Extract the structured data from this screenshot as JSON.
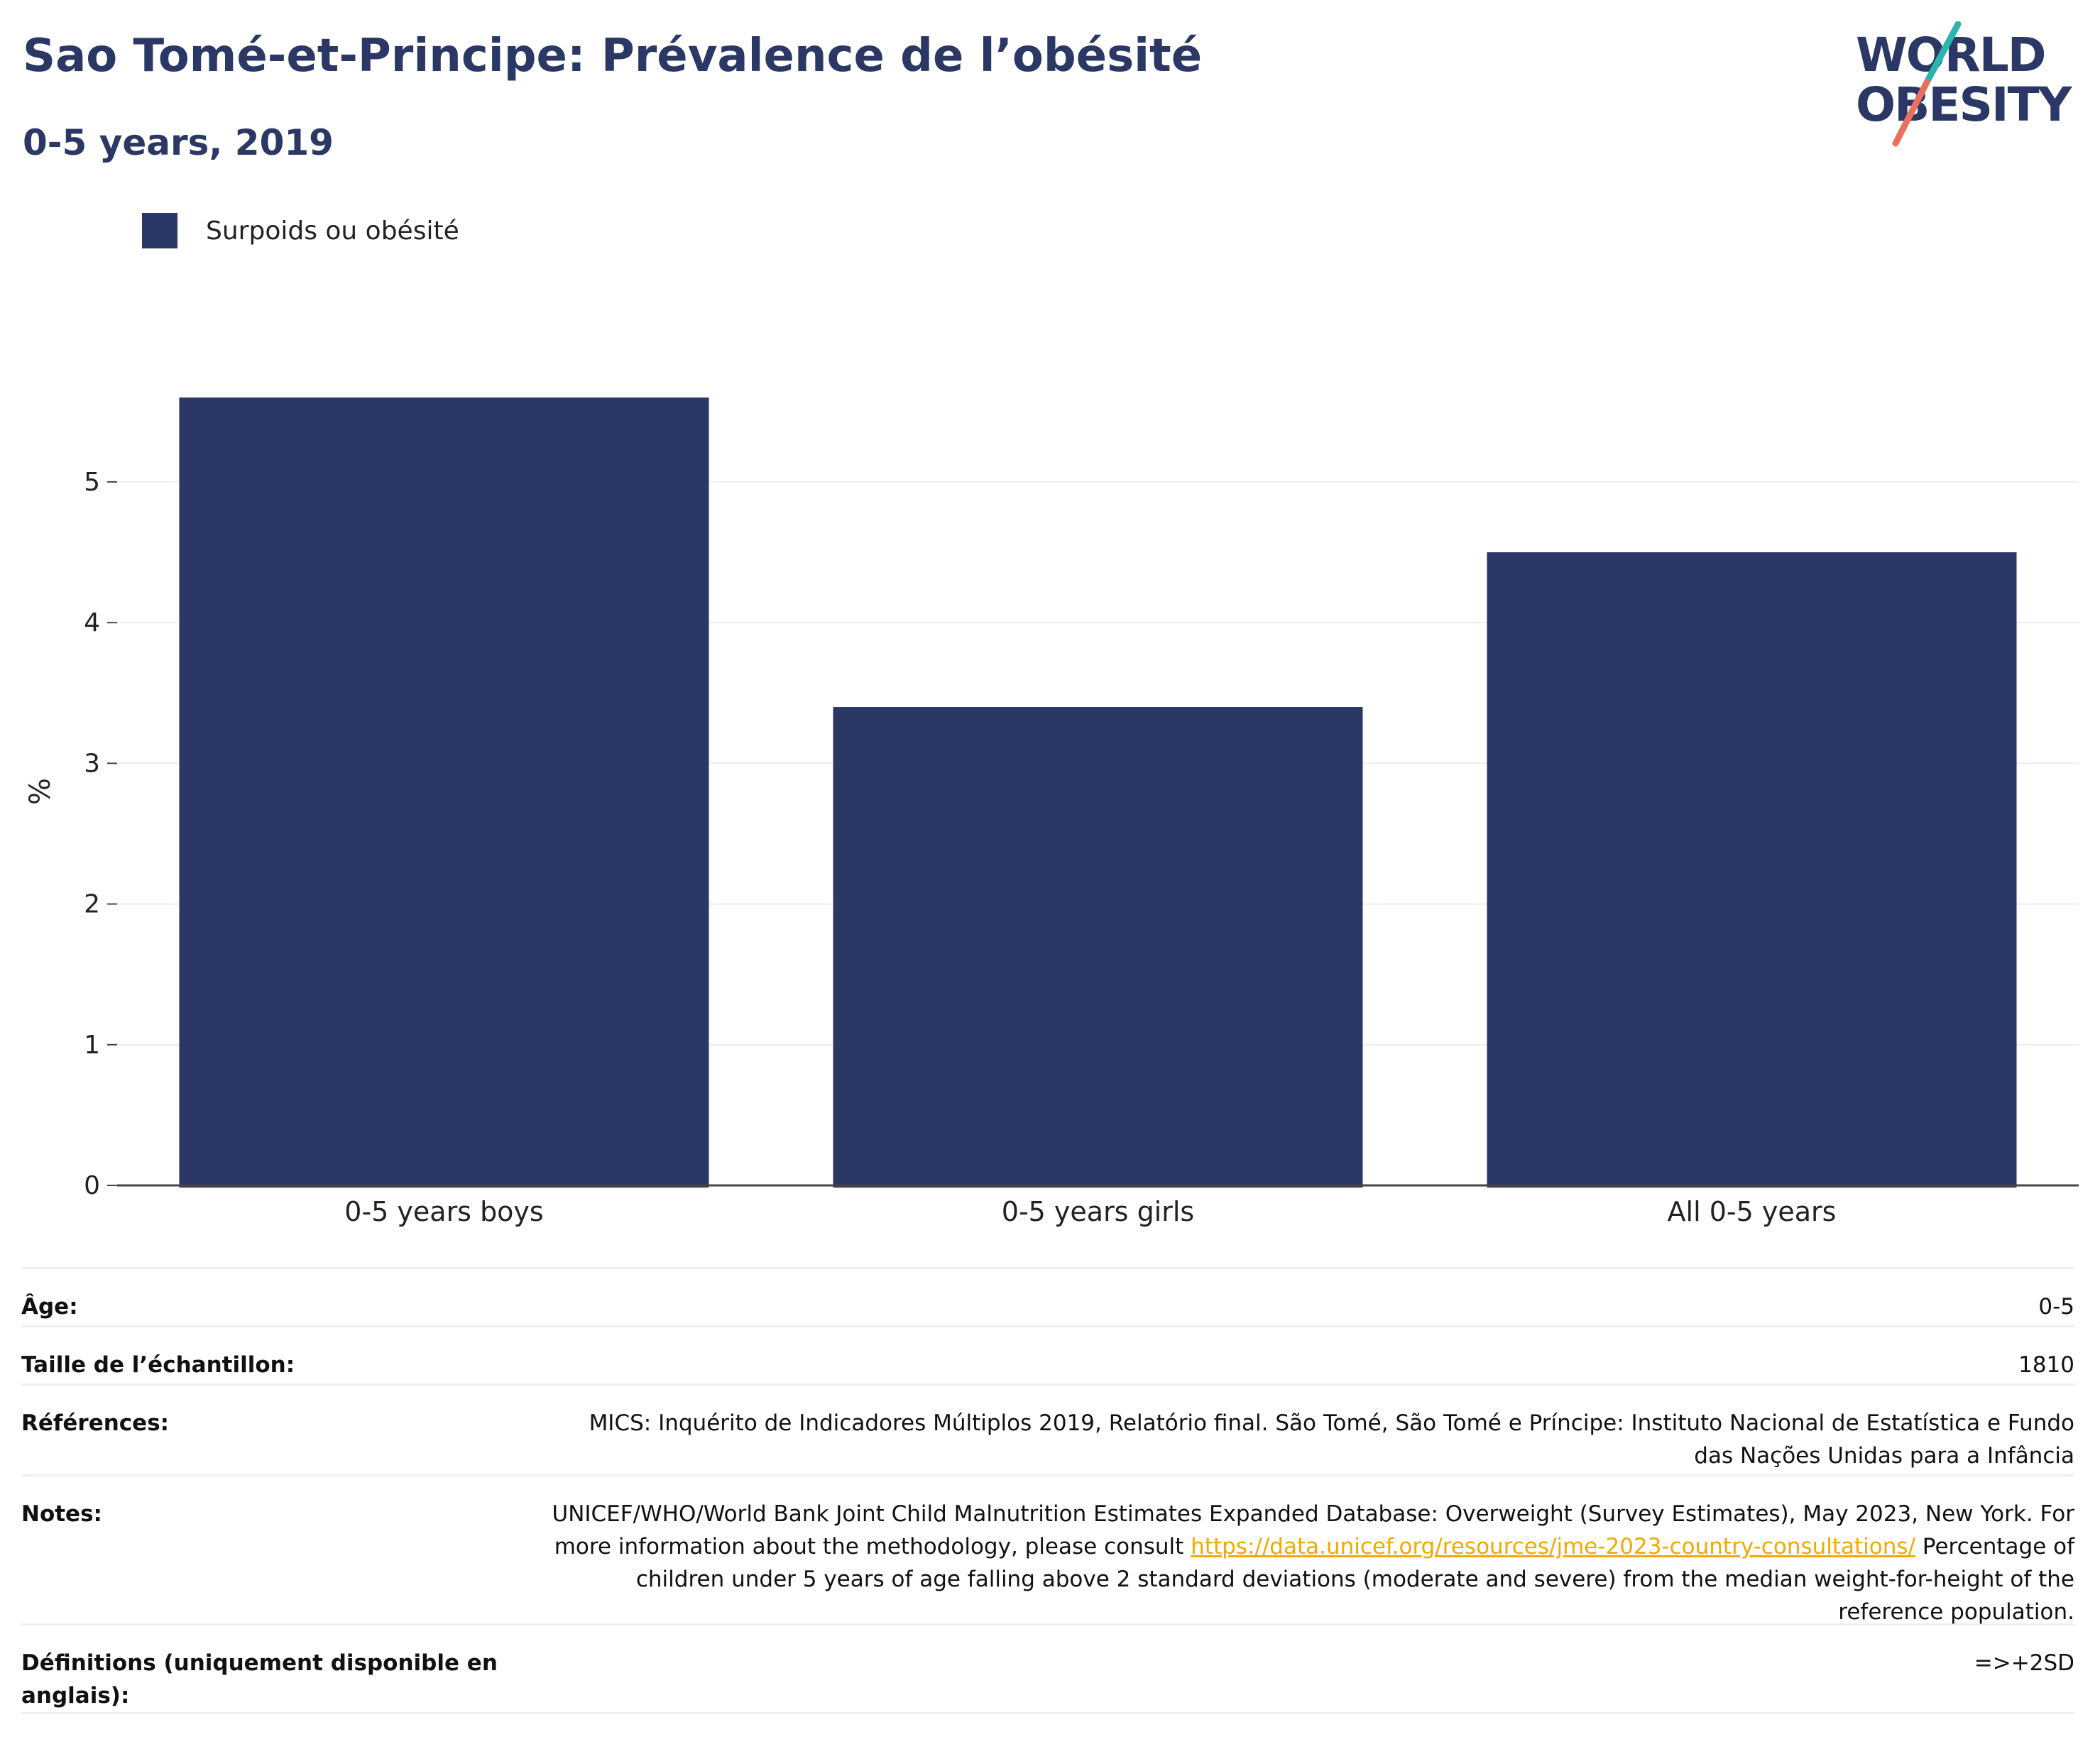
{
  "header": {
    "title": "Sao Tomé-et-Principe: Prévalence de l’obésité",
    "subtitle": "0-5 years, 2019"
  },
  "logo": {
    "line1": "WORLD",
    "line2": "OBESITY",
    "colors": {
      "text": "#2b3764",
      "slash_teal": "#2bb5b0",
      "slash_coral": "#e8705f"
    }
  },
  "colors": {
    "bar": "#2b3764",
    "grid": "#eeeeee",
    "axis": "#444444",
    "link": "#f2a900"
  },
  "chart_data": {
    "type": "bar",
    "categories": [
      "0-5 years boys",
      "0-5 years girls",
      "All 0-5 years"
    ],
    "series": [
      {
        "name": "Surpoids ou obésité",
        "values": [
          5.6,
          3.4,
          4.5
        ]
      }
    ],
    "ylabel": "%",
    "ylim": [
      0,
      5.6
    ],
    "yticks": [
      0,
      1,
      2,
      3,
      4,
      5
    ],
    "grid": true,
    "legend_position": "top-left"
  },
  "info": {
    "age": {
      "label": "Âge:",
      "value": "0-5"
    },
    "sample": {
      "label": "Taille de l’échantillon:",
      "value": "1810"
    },
    "references": {
      "label": "Références:",
      "value": "MICS: Inquérito de Indicadores Múltiplos 2019, Relatório final. São Tomé, São Tomé e Príncipe: Instituto Nacional de Estatística e Fundo das Nações Unidas para a Infância"
    },
    "notes": {
      "label": "Notes:",
      "text_before": "UNICEF/WHO/World Bank Joint Child Malnutrition Estimates Expanded Database: Overweight (Survey Estimates), May 2023, New York. For more information about the methodology, please consult ",
      "link": "https://data.unicef.org/resources/jme-2023-country-consultations/",
      "text_after": " Percentage of children under 5 years of age falling above 2 standard deviations (moderate and severe) from the median weight-for-height of the reference population."
    },
    "definitions": {
      "label": "Définitions (uniquement disponible en anglais):",
      "value": "=>+2SD"
    }
  }
}
